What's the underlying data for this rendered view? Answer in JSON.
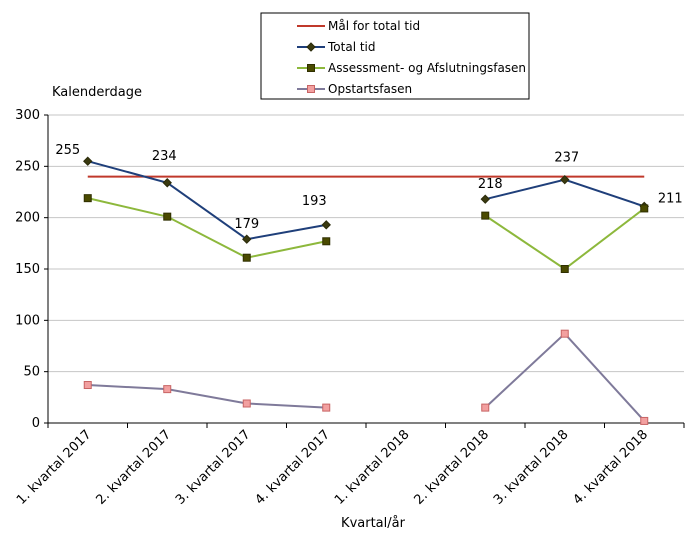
{
  "chart_data": {
    "type": "line",
    "ylabel": "Kalenderdage",
    "xlabel": "Kvartal/år",
    "ylim": [
      0,
      300
    ],
    "yticks": [
      0,
      50,
      100,
      150,
      200,
      250,
      300
    ],
    "grid": true,
    "legend_position": "top-right",
    "categories": [
      "1. kvartal 2017",
      "2. kvartal 2017",
      "3. kvartal 2017",
      "4. kvartal 2017",
      "1. kvartal 2018",
      "2. kvartal 2018",
      "3. kvartal 2018",
      "4. kvartal 2018"
    ],
    "series": [
      {
        "name": "Mål for total tid",
        "color": "#c0392b",
        "marker": "none",
        "values": [
          240,
          240,
          240,
          240,
          240,
          240,
          240,
          240
        ]
      },
      {
        "name": "Total tid",
        "color": "#1f3f7a",
        "marker": "diamond",
        "values": [
          255,
          234,
          179,
          193,
          null,
          218,
          237,
          211
        ],
        "data_labels": [
          255,
          234,
          179,
          193,
          null,
          218,
          237,
          211
        ]
      },
      {
        "name": "Assessment- og Afslutningsfasen",
        "color": "#8db83c",
        "marker": "square",
        "values": [
          219,
          201,
          161,
          177,
          null,
          202,
          150,
          209
        ]
      },
      {
        "name": "Opstartsfasen",
        "color": "#7f7a9a",
        "marker": "square-pink",
        "values": [
          37,
          33,
          19,
          15,
          null,
          15,
          87,
          2
        ]
      }
    ]
  }
}
